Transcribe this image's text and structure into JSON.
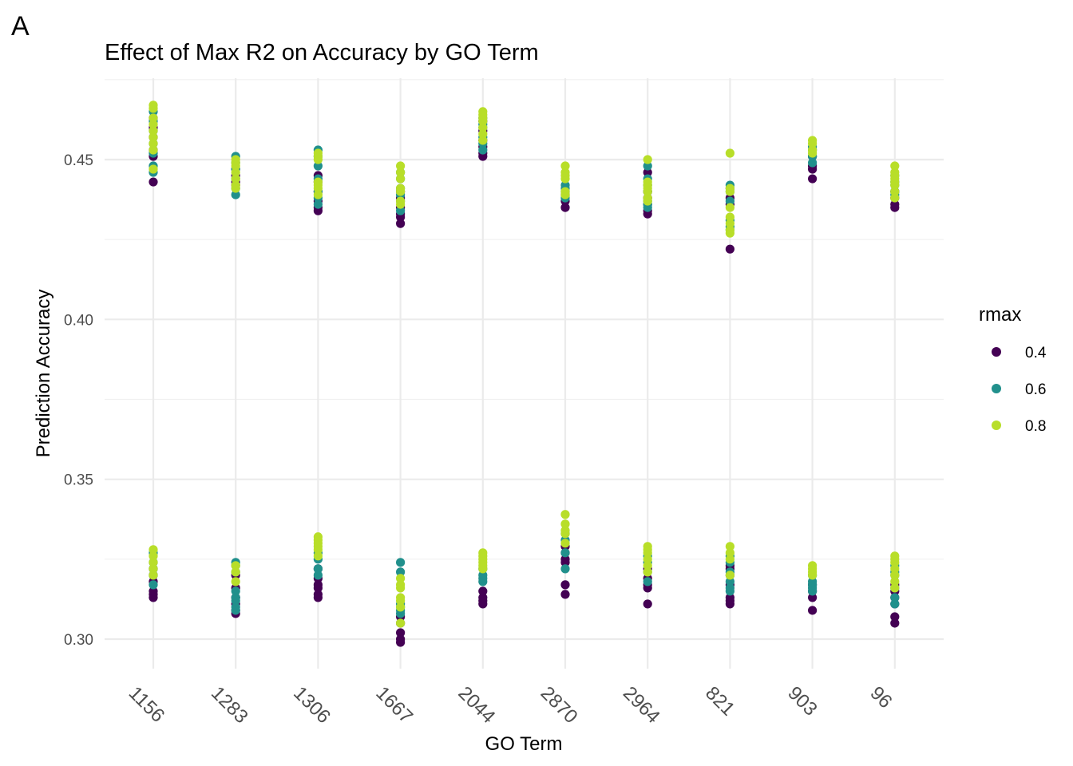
{
  "panel_label": "A",
  "chart_data": {
    "type": "scatter",
    "title": "Effect of Max R2 on Accuracy by GO Term",
    "xlabel": "GO Term",
    "ylabel": "Prediction Accuracy",
    "categories": [
      "1156",
      "1283",
      "1306",
      "1667",
      "2044",
      "2870",
      "2964",
      "821",
      "903",
      "96"
    ],
    "yticks": [
      0.3,
      0.35,
      0.4,
      0.45
    ],
    "ytick_labels": [
      "0.30",
      "0.35",
      "0.40",
      "0.45"
    ],
    "ylim": [
      0.29,
      0.475
    ],
    "grid": true,
    "legend": {
      "title": "rmax",
      "placement": "right",
      "entries": [
        {
          "label": "0.4",
          "color": "#440154"
        },
        {
          "label": "0.6",
          "color": "#21908C"
        },
        {
          "label": "0.8",
          "color": "#B8DE29"
        }
      ]
    },
    "series": [
      {
        "name": "0.4",
        "color": "#440154",
        "points": {
          "1156": [
            0.443,
            0.451,
            0.453,
            0.457,
            0.46,
            0.463,
            0.313,
            0.314,
            0.315,
            0.318,
            0.32,
            0.322
          ],
          "1283": [
            0.442,
            0.443,
            0.445,
            0.447,
            0.308,
            0.309,
            0.311,
            0.313,
            0.316,
            0.32
          ],
          "1306": [
            0.434,
            0.435,
            0.437,
            0.44,
            0.443,
            0.445,
            0.313,
            0.314,
            0.316,
            0.317,
            0.319,
            0.322
          ],
          "1667": [
            0.43,
            0.432,
            0.433,
            0.435,
            0.438,
            0.44,
            0.299,
            0.3,
            0.302,
            0.305,
            0.307
          ],
          "2044": [
            0.451,
            0.452,
            0.454,
            0.456,
            0.459,
            0.462,
            0.311,
            0.312,
            0.313,
            0.315
          ],
          "2870": [
            0.435,
            0.437,
            0.439,
            0.314,
            0.317,
            0.324,
            0.325,
            0.327,
            0.329
          ],
          "2964": [
            0.433,
            0.434,
            0.436,
            0.438,
            0.44,
            0.446,
            0.311,
            0.316,
            0.317,
            0.319,
            0.322
          ],
          "821": [
            0.422,
            0.436,
            0.438,
            0.441,
            0.311,
            0.312,
            0.313,
            0.317,
            0.32,
            0.322,
            0.323
          ],
          "903": [
            0.444,
            0.447,
            0.448,
            0.451,
            0.309,
            0.313,
            0.315,
            0.317
          ],
          "96": [
            0.435,
            0.436,
            0.438,
            0.44,
            0.305,
            0.307,
            0.311,
            0.313,
            0.315,
            0.317
          ]
        }
      },
      {
        "name": "0.6",
        "color": "#21908C",
        "points": {
          "1156": [
            0.446,
            0.448,
            0.452,
            0.455,
            0.459,
            0.462,
            0.465,
            0.317,
            0.32,
            0.322,
            0.324,
            0.327
          ],
          "1283": [
            0.439,
            0.441,
            0.444,
            0.447,
            0.449,
            0.451,
            0.309,
            0.31,
            0.312,
            0.313,
            0.315,
            0.321,
            0.323,
            0.324
          ],
          "1306": [
            0.436,
            0.438,
            0.44,
            0.444,
            0.448,
            0.451,
            0.453,
            0.32,
            0.322,
            0.325,
            0.327
          ],
          "1667": [
            0.434,
            0.437,
            0.439,
            0.441,
            0.444,
            0.446,
            0.308,
            0.309,
            0.31,
            0.311,
            0.321,
            0.324
          ],
          "2044": [
            0.453,
            0.455,
            0.457,
            0.46,
            0.461,
            0.463,
            0.318,
            0.319,
            0.32,
            0.322
          ],
          "2870": [
            0.438,
            0.44,
            0.441,
            0.442,
            0.322,
            0.327,
            0.331,
            0.333
          ],
          "2964": [
            0.435,
            0.436,
            0.437,
            0.44,
            0.442,
            0.444,
            0.448,
            0.318,
            0.321,
            0.324,
            0.326
          ],
          "821": [
            0.428,
            0.429,
            0.431,
            0.437,
            0.44,
            0.442,
            0.315,
            0.316,
            0.318,
            0.321,
            0.324,
            0.326
          ],
          "903": [
            0.449,
            0.451,
            0.453,
            0.454,
            0.315,
            0.316,
            0.317,
            0.318,
            0.32
          ],
          "96": [
            0.439,
            0.44,
            0.442,
            0.443,
            0.445,
            0.311,
            0.313,
            0.316,
            0.32,
            0.321,
            0.323
          ]
        }
      },
      {
        "name": "0.8",
        "color": "#B8DE29",
        "points": {
          "1156": [
            0.447,
            0.453,
            0.455,
            0.457,
            0.459,
            0.461,
            0.463,
            0.466,
            0.467,
            0.32,
            0.322,
            0.324,
            0.326,
            0.328
          ],
          "1283": [
            0.441,
            0.442,
            0.444,
            0.446,
            0.448,
            0.449,
            0.45,
            0.318,
            0.321,
            0.323
          ],
          "1306": [
            0.439,
            0.441,
            0.442,
            0.443,
            0.45,
            0.451,
            0.452,
            0.326,
            0.328,
            0.329,
            0.33,
            0.331,
            0.332
          ],
          "1667": [
            0.436,
            0.437,
            0.44,
            0.441,
            0.444,
            0.446,
            0.448,
            0.305,
            0.31,
            0.312,
            0.313,
            0.316,
            0.317,
            0.319
          ],
          "2044": [
            0.456,
            0.458,
            0.46,
            0.462,
            0.463,
            0.464,
            0.465,
            0.322,
            0.323,
            0.324,
            0.325,
            0.326,
            0.327
          ],
          "2870": [
            0.439,
            0.44,
            0.444,
            0.445,
            0.446,
            0.448,
            0.33,
            0.333,
            0.334,
            0.336,
            0.339
          ],
          "2964": [
            0.437,
            0.438,
            0.44,
            0.441,
            0.442,
            0.443,
            0.45,
            0.321,
            0.323,
            0.325,
            0.327,
            0.328,
            0.329
          ],
          "821": [
            0.427,
            0.428,
            0.43,
            0.432,
            0.435,
            0.44,
            0.441,
            0.452,
            0.32,
            0.325,
            0.327,
            0.329
          ],
          "903": [
            0.452,
            0.453,
            0.455,
            0.456,
            0.32,
            0.321,
            0.322,
            0.323
          ],
          "96": [
            0.438,
            0.44,
            0.442,
            0.443,
            0.444,
            0.445,
            0.446,
            0.448,
            0.316,
            0.318,
            0.32,
            0.322,
            0.324,
            0.325,
            0.326
          ]
        }
      }
    ]
  }
}
